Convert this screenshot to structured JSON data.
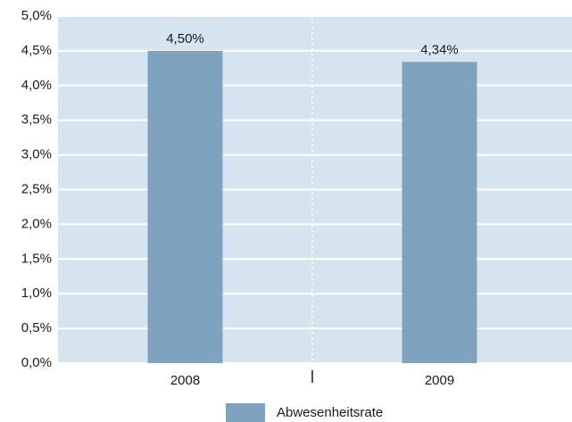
{
  "chart_data": {
    "type": "bar",
    "categories": [
      "2008",
      "2009"
    ],
    "series": [
      {
        "name": "Abwesenheitsrate",
        "color": "#7fa3bf",
        "values": [
          4.5,
          4.34
        ],
        "value_labels": [
          "4,50%",
          "4,34%"
        ]
      }
    ],
    "ylim": [
      0,
      5
    ],
    "yticks": [
      {
        "value": 0,
        "label": "0,0%"
      },
      {
        "value": 0.5,
        "label": "0,5%"
      },
      {
        "value": 1,
        "label": "1,0%"
      },
      {
        "value": 1.5,
        "label": "1,5%"
      },
      {
        "value": 2,
        "label": "2,0%"
      },
      {
        "value": 2.5,
        "label": "2,5%"
      },
      {
        "value": 3,
        "label": "3,0%"
      },
      {
        "value": 3.5,
        "label": "3,5%"
      },
      {
        "value": 4,
        "label": "4,0%"
      },
      {
        "value": 4.5,
        "label": "4,5%"
      },
      {
        "value": 5,
        "label": "5,0%"
      }
    ],
    "grid": true,
    "legend": "bottom"
  }
}
